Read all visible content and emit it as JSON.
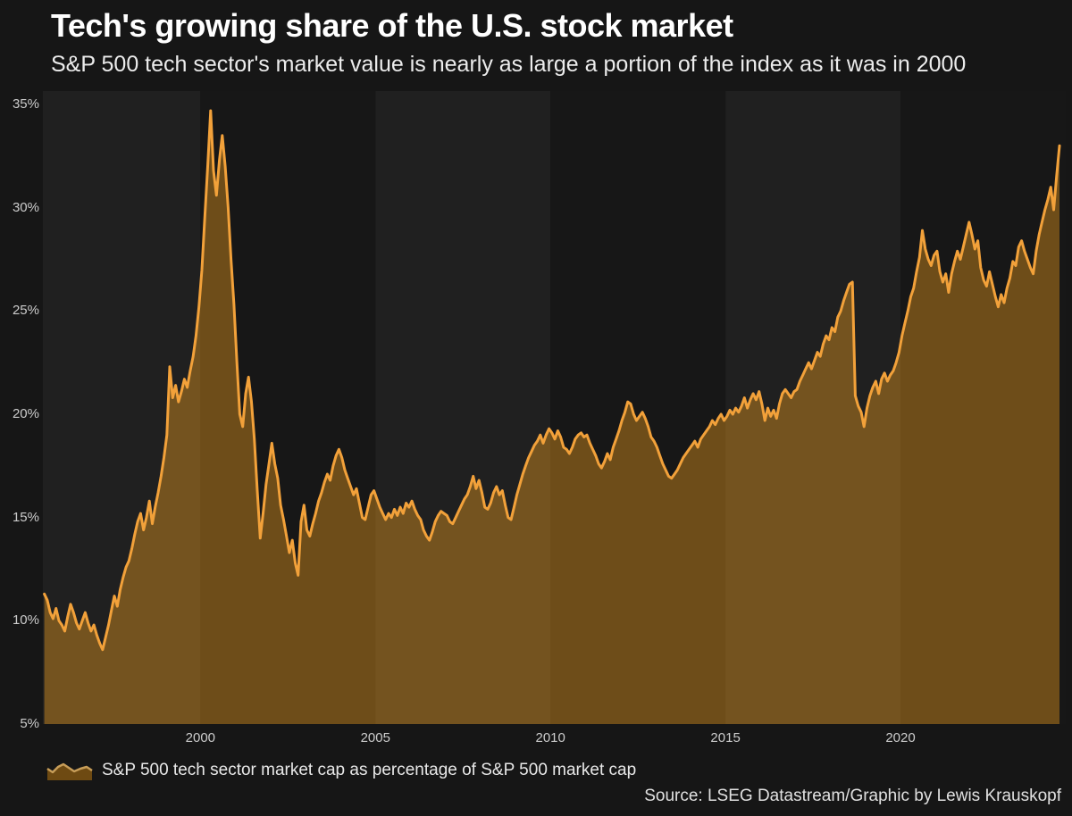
{
  "header": {
    "title": "Tech's growing share of the U.S. stock market",
    "subtitle": "S&P 500 tech sector's market value is nearly as large a portion of the index as it was in 2000"
  },
  "legend": {
    "label": "S&P 500 tech sector market cap as percentage of S&P 500 market cap"
  },
  "footer": {
    "source": "Source: LSEG Datastream/Graphic by Lewis Krauskopf"
  },
  "colors": {
    "background": "#161616",
    "band_light": "#202020",
    "band_dark": "#171717",
    "line": "#f2a13a",
    "fill": "rgba(243,161,30,0.40)",
    "legend_icon_line": "#c79d58",
    "legend_icon_fill": "#6e4a12",
    "title_text": "#ffffff",
    "tick_text": "#cccccc"
  },
  "chart_data": {
    "type": "area",
    "title": "Tech's growing share of the U.S. stock market",
    "subtitle": "S&P 500 tech sector's market value is nearly as large a portion of the index as it was in 2000",
    "series_name": "S&P 500 tech sector market cap as percentage of S&P 500 market cap",
    "x_unit": "decimal_year",
    "y_unit": "percent_of_sp500_market_cap",
    "x_start": 1995.5417,
    "x_step_years": 0.0833333,
    "xlim": [
      1995.5,
      2024.72
    ],
    "ylim": [
      5,
      35.65
    ],
    "y_ticks": [
      5,
      10,
      15,
      20,
      25,
      30,
      35
    ],
    "y_tick_suffix": "%",
    "x_ticks": [
      2000,
      2005,
      2010,
      2015,
      2020
    ],
    "grid": false,
    "legend_position": "bottom-left",
    "background_bands": {
      "boundaries": [
        1995.5,
        2000,
        2005,
        2010,
        2015,
        2020,
        2024.72
      ],
      "first": "light"
    },
    "values": [
      11.3,
      11.0,
      10.4,
      10.1,
      10.6,
      10.0,
      9.8,
      9.5,
      10.2,
      10.8,
      10.4,
      9.9,
      9.6,
      10.0,
      10.4,
      9.9,
      9.5,
      9.8,
      9.3,
      8.9,
      8.6,
      9.2,
      9.8,
      10.5,
      11.2,
      10.7,
      11.5,
      12.1,
      12.6,
      12.9,
      13.5,
      14.2,
      14.8,
      15.2,
      14.4,
      15.0,
      15.8,
      14.7,
      15.5,
      16.2,
      17.0,
      17.9,
      19.0,
      22.3,
      20.8,
      21.4,
      20.6,
      21.1,
      21.7,
      21.3,
      22.1,
      22.8,
      23.8,
      25.2,
      27.0,
      29.5,
      32.0,
      34.7,
      31.8,
      30.6,
      32.3,
      33.5,
      32.0,
      30.0,
      27.5,
      25.3,
      22.5,
      20.0,
      19.4,
      21.0,
      21.8,
      20.6,
      18.8,
      16.3,
      14.0,
      15.2,
      16.6,
      17.6,
      18.6,
      17.6,
      16.9,
      15.6,
      14.9,
      14.1,
      13.3,
      13.9,
      12.8,
      12.2,
      14.8,
      15.6,
      14.4,
      14.1,
      14.7,
      15.2,
      15.8,
      16.2,
      16.7,
      17.1,
      16.8,
      17.5,
      18.0,
      18.3,
      17.9,
      17.3,
      16.9,
      16.5,
      16.1,
      16.4,
      15.7,
      15.0,
      14.9,
      15.5,
      16.1,
      16.3,
      15.9,
      15.5,
      15.2,
      14.9,
      15.2,
      15.0,
      15.4,
      15.1,
      15.5,
      15.2,
      15.7,
      15.5,
      15.8,
      15.4,
      15.1,
      14.9,
      14.4,
      14.1,
      13.9,
      14.3,
      14.8,
      15.1,
      15.3,
      15.2,
      15.1,
      14.8,
      14.7,
      15.0,
      15.3,
      15.6,
      15.9,
      16.1,
      16.5,
      17.0,
      16.4,
      16.8,
      16.2,
      15.5,
      15.4,
      15.7,
      16.2,
      16.5,
      16.1,
      16.3,
      15.6,
      15.0,
      14.9,
      15.5,
      16.1,
      16.6,
      17.1,
      17.5,
      17.9,
      18.2,
      18.5,
      18.7,
      19.0,
      18.6,
      19.0,
      19.3,
      19.1,
      18.8,
      19.2,
      18.9,
      18.4,
      18.3,
      18.1,
      18.4,
      18.8,
      19.0,
      19.1,
      18.9,
      19.0,
      18.6,
      18.3,
      18.0,
      17.6,
      17.4,
      17.7,
      18.1,
      17.8,
      18.4,
      18.8,
      19.2,
      19.7,
      20.1,
      20.6,
      20.5,
      20.0,
      19.7,
      19.9,
      20.1,
      19.8,
      19.4,
      18.9,
      18.7,
      18.4,
      18.0,
      17.6,
      17.3,
      17.0,
      16.9,
      17.1,
      17.3,
      17.6,
      17.9,
      18.1,
      18.3,
      18.5,
      18.7,
      18.4,
      18.8,
      19.0,
      19.2,
      19.4,
      19.7,
      19.5,
      19.8,
      20.0,
      19.7,
      19.9,
      20.2,
      20.0,
      20.3,
      20.1,
      20.4,
      20.8,
      20.3,
      20.7,
      21.0,
      20.7,
      21.1,
      20.5,
      19.7,
      20.3,
      19.9,
      20.2,
      19.8,
      20.5,
      21.0,
      21.2,
      21.0,
      20.8,
      21.1,
      21.2,
      21.6,
      21.9,
      22.2,
      22.5,
      22.2,
      22.6,
      23.0,
      22.8,
      23.4,
      23.8,
      23.6,
      24.2,
      24.0,
      24.7,
      25.0,
      25.5,
      25.9,
      26.3,
      26.4,
      20.9,
      20.4,
      20.1,
      19.4,
      20.3,
      20.9,
      21.3,
      21.6,
      21.0,
      21.7,
      22.0,
      21.6,
      21.9,
      22.1,
      22.5,
      23.0,
      23.8,
      24.4,
      25.0,
      25.7,
      26.1,
      26.9,
      27.6,
      28.9,
      28.0,
      27.5,
      27.2,
      27.7,
      27.9,
      26.9,
      26.4,
      26.8,
      25.9,
      26.8,
      27.4,
      27.9,
      27.5,
      28.1,
      28.7,
      29.3,
      28.7,
      28.0,
      28.4,
      27.1,
      26.5,
      26.2,
      26.9,
      26.3,
      25.7,
      25.2,
      25.8,
      25.4,
      26.1,
      26.6,
      27.4,
      27.2,
      28.1,
      28.4,
      27.9,
      27.5,
      27.1,
      26.8,
      27.9,
      28.7,
      29.3,
      29.9,
      30.4,
      31.0,
      29.9,
      31.5,
      33.0
    ]
  }
}
